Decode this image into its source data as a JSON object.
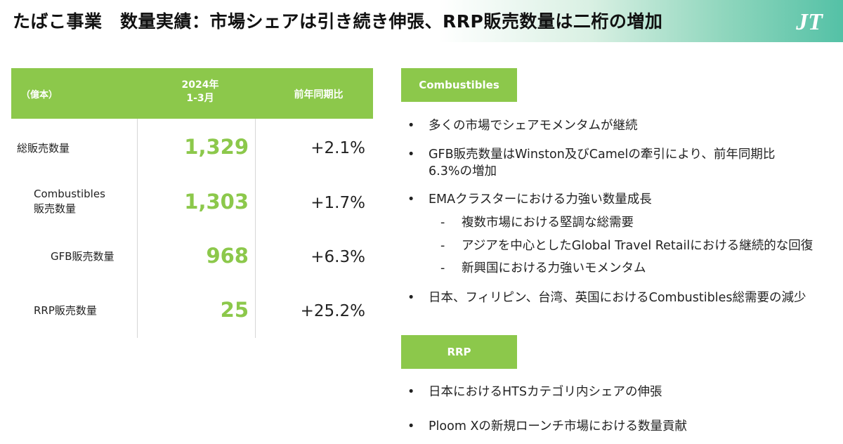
{
  "header": {
    "title": "たばこ事業　数量実績：市場シェアは引き続き伸張、RRP販売数量は二桁の増加",
    "logo_text": "JT"
  },
  "table": {
    "unit": "（億本）",
    "period_label": "2024年\n1-3月",
    "yoy_label": "前年同期比",
    "rows": [
      {
        "label": "総販売数量",
        "value": "1,329",
        "yoy": "+2.1%"
      },
      {
        "label": "Combustibles\n販売数量",
        "value": "1,303",
        "yoy": "+1.7%"
      },
      {
        "label": "GFB販売数量",
        "value": "968",
        "yoy": "+6.3%"
      },
      {
        "label": "RRP販売数量",
        "value": "25",
        "yoy": "+25.2%"
      }
    ]
  },
  "combustibles": {
    "tag": "Combustibles",
    "bullets": [
      "多くの市場でシェアモメンタムが継続",
      "GFB販売数量はWinston及びCamelの牽引により、前年同期比",
      "6.3%の増加",
      "EMAクラスターにおける力強い数量成長",
      "日本、フィリピン、台湾、英国におけるCombustibles総需要の減少"
    ],
    "sub_bullets": [
      "複数市場における堅調な総需要",
      "アジアを中心としたGlobal Travel Retailにおける継続的な回復",
      "新興国における力強いモメンタム"
    ]
  },
  "rrp": {
    "tag": "RRP",
    "bullets": [
      "日本におけるHTSカテゴリ内シェアの伸張",
      "Ploom Xの新規ローンチ市場における数量貢献"
    ]
  },
  "symbols": {
    "bullet": "•",
    "dash": "-"
  },
  "colors": {
    "accent_green": "#8cc84b",
    "header_teal": "#54c1a6"
  }
}
